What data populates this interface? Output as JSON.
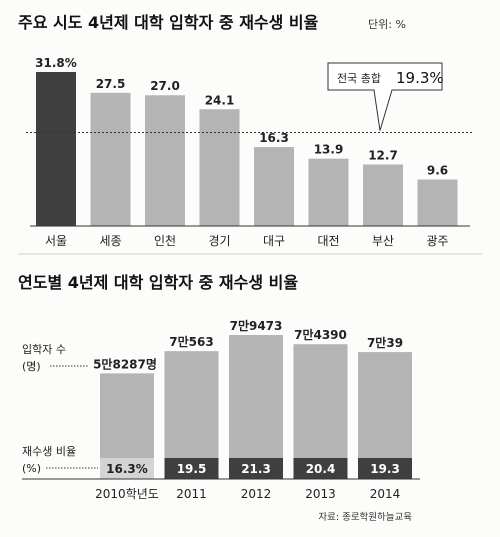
{
  "chart_data": [
    {
      "type": "bar",
      "title": "주요 시도 4년제 대학 입학자 중 재수생 비율",
      "unit": "단위: %",
      "categories": [
        "서울",
        "세종",
        "인천",
        "경기",
        "대구",
        "대전",
        "부산",
        "광주"
      ],
      "values": [
        31.8,
        27.5,
        27.0,
        24.1,
        16.3,
        13.9,
        12.7,
        9.6
      ],
      "value_labels": [
        "31.8%",
        "27.5",
        "27.0",
        "24.1",
        "16.3",
        "13.9",
        "12.7",
        "9.6"
      ],
      "highlight_index": 0,
      "reference_line": {
        "value": 19.3,
        "label": "전국 총합",
        "value_label": "19.3%"
      },
      "ylim": [
        0,
        31.8
      ],
      "colors": {
        "highlight": "#404040",
        "bar": "#b4b4b4"
      }
    },
    {
      "type": "bar",
      "title": "연도별 4년제 대학 입학자 중 재수생 비율",
      "categories": [
        "2010학년도",
        "2011",
        "2012",
        "2013",
        "2014"
      ],
      "series": [
        {
          "name": "입학자 수 (명)",
          "values": [
            58287,
            70563,
            79473,
            74390,
            70039
          ],
          "labels": [
            "5만8287명",
            "7만563",
            "7만9473",
            "7만4390",
            "7만39"
          ]
        },
        {
          "name": "재수생 비율 (%)",
          "values": [
            16.3,
            19.5,
            21.3,
            20.4,
            19.3
          ],
          "labels": [
            "16.3%",
            "19.5",
            "21.3",
            "20.4",
            "19.3"
          ]
        }
      ],
      "axis_label_top": [
        "입학자 수",
        "(명)"
      ],
      "axis_label_bottom": [
        "재수생 비율",
        "(%)"
      ],
      "ylim": [
        0,
        79473
      ],
      "colors": {
        "first_bottom": "#d4d4d4",
        "dark": "#3f3f3f",
        "bar": "#b4b4b4"
      }
    }
  ],
  "source": "자료: 종로학원하늘교육"
}
